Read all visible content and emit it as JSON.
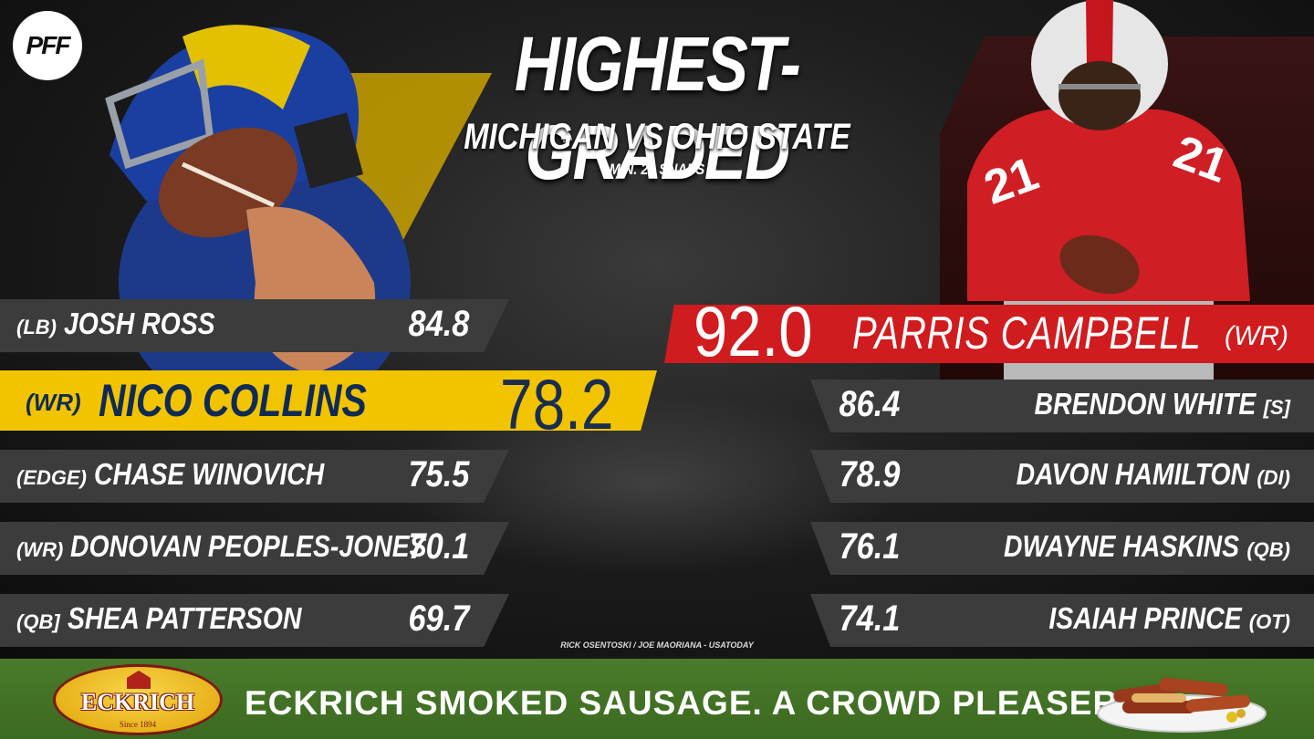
{
  "brand_logo": "PFF",
  "header": {
    "title": "HIGHEST-GRADED",
    "subtitle": "MICHIGAN VS OHIO STATE",
    "note": "MIN. 20 SNAPS"
  },
  "michigan": {
    "top": {
      "pos": "(WR)",
      "name": "NICO COLLINS",
      "grade": "78.2"
    },
    "rows": [
      {
        "pos": "(LB)",
        "name": "JOSH ROSS",
        "grade": "84.8"
      },
      {
        "pos": "(EDGE)",
        "name": "CHASE WINOVICH",
        "grade": "75.5"
      },
      {
        "pos": "(WR)",
        "name": "DONOVAN PEOPLES-JONES",
        "grade": "70.1"
      },
      {
        "pos": "(QB]",
        "name": "SHEA PATTERSON",
        "grade": "69.7"
      }
    ]
  },
  "ohio_state": {
    "top": {
      "pos": "(WR)",
      "name": "PARRIS CAMPBELL",
      "grade": "92.0"
    },
    "rows": [
      {
        "pos": "[S]",
        "name": "BRENDON WHITE",
        "grade": "86.4"
      },
      {
        "pos": "(DI)",
        "name": "DAVON HAMILTON",
        "grade": "78.9"
      },
      {
        "pos": "(QB)",
        "name": "DWAYNE HASKINS",
        "grade": "76.1"
      },
      {
        "pos": "(OT)",
        "name": "ISAIAH PRINCE",
        "grade": "74.1"
      }
    ]
  },
  "photo_credit": "RICK OSENTOSKI / JOE MAORIANA - USATODAY",
  "ad": {
    "brand": "ECKRICH",
    "since": "Since 1894",
    "tagline": "ECKRICH SMOKED SAUSAGE. A CROWD PLEASER."
  },
  "colors": {
    "michigan_maize": "#f2c400",
    "michigan_blue": "#0f2b55",
    "osu_scarlet": "#d01c1f",
    "row_gray": "#3c3c3c",
    "ad_green": "#3b6a21"
  }
}
